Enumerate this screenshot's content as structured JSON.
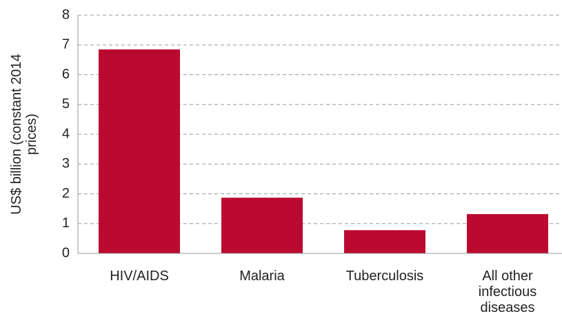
{
  "chart_data": {
    "type": "bar",
    "y_label": "US$ billion (constant 2014 prices)",
    "categories": [
      "HIV/AIDS",
      "Malaria",
      "Tuberculosis",
      "All other infectious diseases"
    ],
    "values": [
      6.85,
      1.87,
      0.78,
      1.32
    ],
    "color": "#bb0a30",
    "ylim": [
      0,
      8
    ],
    "yticks": [
      0,
      1,
      2,
      3,
      4,
      5,
      6,
      7,
      8
    ],
    "grid": true
  }
}
